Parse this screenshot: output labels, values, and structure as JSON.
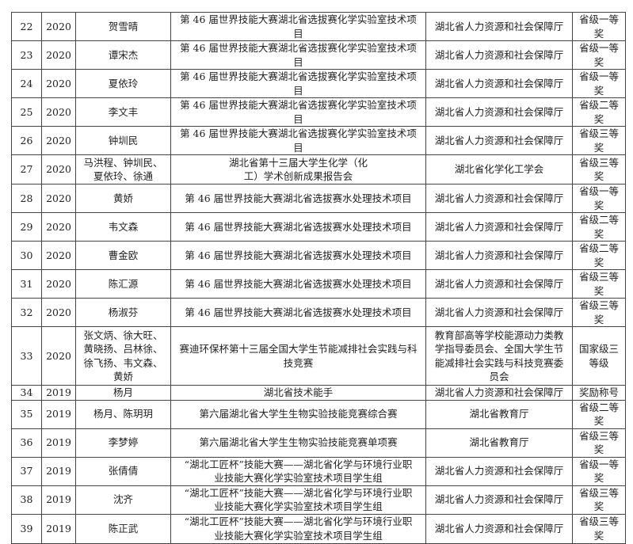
{
  "table": {
    "rows": [
      {
        "no": "22",
        "year": "2020",
        "names": "贺雪晴",
        "project": "第 46 届世界技能大赛湖北省选拔赛化学实验室技术项目",
        "org": "湖北省人力资源和社会保障厅",
        "award": "省级一等奖"
      },
      {
        "no": "23",
        "year": "2020",
        "names": "谭宋杰",
        "project": "第 46 届世界技能大赛湖北省选拔赛化学实验室技术项目",
        "org": "湖北省人力资源和社会保障厅",
        "award": "省级一等奖"
      },
      {
        "no": "24",
        "year": "2020",
        "names": "夏依玲",
        "project": "第 46 届世界技能大赛湖北省选拔赛化学实验室技术项目",
        "org": "湖北省人力资源和社会保障厅",
        "award": "省级一等奖"
      },
      {
        "no": "25",
        "year": "2020",
        "names": "李文丰",
        "project": "第 46 届世界技能大赛湖北省选拔赛化学实验室技术项目",
        "org": "湖北省人力资源和社会保障厅",
        "award": "省级二等奖"
      },
      {
        "no": "26",
        "year": "2020",
        "names": "钟圳民",
        "project": "第 46 届世界技能大赛湖北省选拔赛化学实验室技术项目",
        "org": "湖北省人力资源和社会保障厅",
        "award": "省级三等奖"
      },
      {
        "no": "27",
        "year": "2020",
        "names": "马洪程、钟圳民、夏依玲、徐通",
        "project": "湖北省第十三届大学生化学（化工）学术创新成果报告会",
        "org": "湖北省化学化工学会",
        "award": "省级三等奖"
      },
      {
        "no": "28",
        "year": "2020",
        "names": "黄娇",
        "project": "第 46 届世界技能大赛湖北省选拔赛水处理技术项目",
        "org": "湖北省人力资源和社会保障厅",
        "award": "省级一等奖"
      },
      {
        "no": "29",
        "year": "2020",
        "names": "韦文森",
        "project": "第 46 届世界技能大赛湖北省选拔赛水处理技术项目",
        "org": "湖北省人力资源和社会保障厅",
        "award": "省级二等奖"
      },
      {
        "no": "30",
        "year": "2020",
        "names": "曹金欧",
        "project": "第 46 届世界技能大赛湖北省选拔赛水处理技术项目",
        "org": "湖北省人力资源和社会保障厅",
        "award": "省级二等奖"
      },
      {
        "no": "31",
        "year": "2020",
        "names": "陈汇源",
        "project": "第 46 届世界技能大赛湖北省选拔赛水处理技术项目",
        "org": "湖北省人力资源和社会保障厅",
        "award": "省级三等奖"
      },
      {
        "no": "32",
        "year": "2020",
        "names": "杨淑芬",
        "project": "第 46 届世界技能大赛湖北省选拔赛水处理技术项目",
        "org": "湖北省人力资源和社会保障厅",
        "award": "省级三等奖"
      },
      {
        "no": "33",
        "year": "2020",
        "names": "张文炳、徐大旺、黄晓扬、吕林徐、徐飞扬、韦文森、黄娇",
        "project": "赛迪环保杯第十三届全国大学生节能减排社会实践与科技竞赛",
        "org": "教育部高等学校能源动力类教学指导委员会、全国大学生节能减排社会实践与科技竞赛委员会",
        "award": "国家级三等级"
      },
      {
        "no": "34",
        "year": "2019",
        "names": "杨月",
        "project": "湖北省技术能手",
        "org": "湖北省人力资源和社会保障厅",
        "award": "奖励称号"
      },
      {
        "no": "35",
        "year": "2019",
        "names": "杨月、陈玥玥",
        "project": "第六届湖北省大学生生物实验技能竞赛综合赛",
        "org": "湖北省教育厅",
        "award": "省级二等奖"
      },
      {
        "no": "36",
        "year": "2019",
        "names": "李梦婷",
        "project": "第六届湖北省大学生生物实验技能竞赛单项赛",
        "org": "湖北省教育厅",
        "award": "省级三等奖"
      },
      {
        "no": "37",
        "year": "2019",
        "names": "张倩倩",
        "project": "“湖北工匠杯”技能大赛——湖北省化学与环境行业职业技能大赛化学实验室技术项目学生组",
        "org": "湖北省人力资源和社会保障厅",
        "award": "省级一等奖"
      },
      {
        "no": "38",
        "year": "2019",
        "names": "沈齐",
        "project": "“湖北工匠杯”技能大赛——湖北省化学与环境行业职业技能大赛化学实验室技术项目学生组",
        "org": "湖北省人力资源和社会保障厅",
        "award": "省级三等奖"
      },
      {
        "no": "39",
        "year": "2019",
        "names": "陈正武",
        "project": "“湖北工匠杯”技能大赛——湖北省化学与环境行业职业技能大赛化学实验室技术项目学生组",
        "org": "湖北省人力资源和社会保障厅",
        "award": "省级三等奖"
      }
    ]
  }
}
